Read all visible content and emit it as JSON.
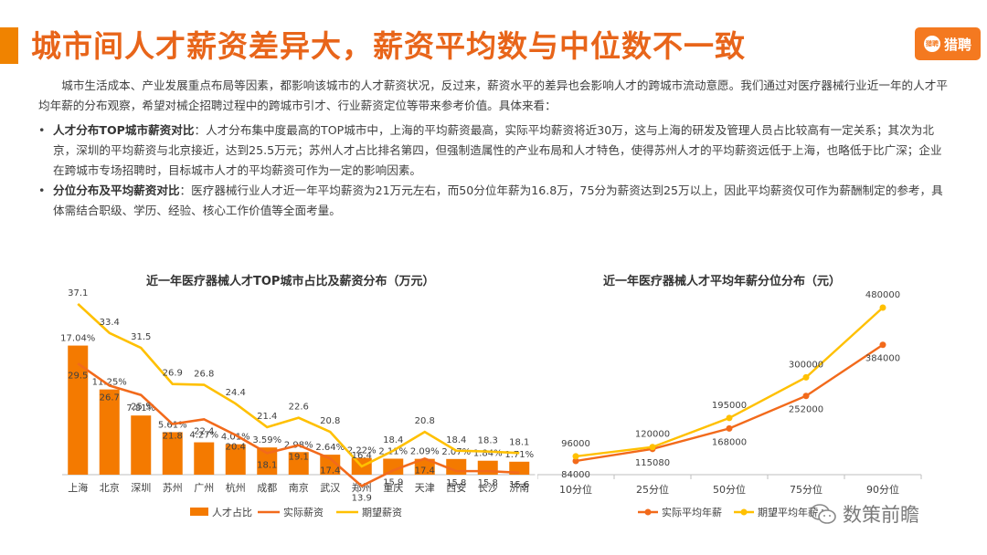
{
  "header": {
    "title": "城市间人才薪资差异大，薪资平均数与中位数不一致",
    "logo_text": "猎聘",
    "logo_mark": "猎聘"
  },
  "text": {
    "intro": "城市生活成本、产业发展重点布局等因素，都影响该城市的人才薪资状况，反过来，薪资水平的差异也会影响人才的跨城市流动意愿。我们通过对医疗器械行业近一年的人才平均年薪的分布观察，希望对械企招聘过程中的跨城市引才、行业薪资定位等带来参考价值。具体来看：",
    "bullets": [
      {
        "bold": "人才分布TOP城市薪资对比",
        "text": "：人才分布集中度最高的TOP城市中，上海的平均薪资最高，实际平均薪资将近30万，这与上海的研发及管理人员占比较高有一定关系；其次为北京，深圳的平均薪资与北京接近，达到25.5万元；苏州人才占比排名第四，但强制造属性的产业布局和人才特色，使得苏州人才的平均薪资远低于上海，也略低于比广深；企业在跨城市专场招聘时，目标城市人才的平均薪资可作为一定的影响因素。"
      },
      {
        "bold": "分位分布及平均薪资对比",
        "text": "：医疗器械行业人才近一年平均薪资为21万元左右，而50分位年薪为16.8万，75分为薪资达到25万以上，因此平均薪资仅可作为薪酬制定的参考，具体需结合职级、学历、经验、核心工作价值等全面考量。"
      }
    ],
    "bullet_symbol": "•"
  },
  "chart_data": [
    {
      "type": "bar",
      "title": "近一年医疗器械人才TOP城市占比及薪资分布（万元）",
      "categories": [
        "上海",
        "北京",
        "深圳",
        "苏州",
        "广州",
        "杭州",
        "成都",
        "南京",
        "武汉",
        "郑州",
        "重庆",
        "天津",
        "西安",
        "长沙",
        "济南"
      ],
      "series": [
        {
          "name": "人才占比",
          "kind": "bar",
          "color": "#f47a00",
          "values": [
            17.04,
            11.25,
            7.81,
            5.61,
            4.27,
            4.01,
            3.59,
            2.98,
            2.64,
            2.22,
            2.11,
            2.09,
            2.07,
            1.84,
            1.71
          ],
          "labels": [
            "17.04%",
            "11.25%",
            "7.81%",
            "5.61%",
            "4.27%",
            "4.01%",
            "3.59%",
            "2.98%",
            "2.64%",
            "2.22%",
            "2.11%",
            "2.09%",
            "2.07%",
            "1.84%",
            "1.71%"
          ]
        },
        {
          "name": "实际薪资",
          "kind": "line",
          "color": "#f26a1b",
          "values": [
            29.5,
            26.7,
            25.5,
            21.8,
            22.4,
            20.4,
            18.1,
            19.1,
            17.4,
            13.9,
            15.9,
            17.4,
            15.8,
            15.8,
            15.6
          ]
        },
        {
          "name": "期望薪资",
          "kind": "line",
          "color": "#ffc000",
          "values": [
            37.1,
            33.4,
            31.5,
            26.9,
            26.8,
            24.4,
            21.4,
            22.6,
            20.8,
            16.4,
            18.4,
            20.8,
            18.4,
            18.3,
            18.1
          ]
        }
      ],
      "legend_position": "bottom"
    },
    {
      "type": "line",
      "title": "近一年医疗器械人才平均年薪分位分布（元）",
      "categories": [
        "10分位",
        "25分位",
        "50分位",
        "75分位",
        "90分位"
      ],
      "series": [
        {
          "name": "实际平均年薪",
          "color": "#f26a1b",
          "values": [
            84000,
            115080,
            168000,
            252000,
            384000
          ]
        },
        {
          "name": "期望平均年薪",
          "color": "#ffc000",
          "values": [
            96000,
            120000,
            195000,
            300000,
            480000
          ]
        }
      ],
      "legend_position": "bottom"
    }
  ],
  "watermark": {
    "text": "数策前瞻",
    "icon": "wechat-icon"
  }
}
